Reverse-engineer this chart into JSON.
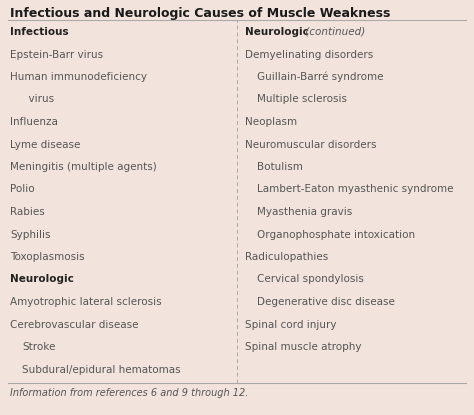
{
  "title": "Infectious and Neurologic Causes of Muscle Weakness",
  "bg_color": "#f2e4dc",
  "title_color": "#1a1a1a",
  "text_color": "#555555",
  "bold_color": "#222222",
  "footer": "Information from references 6 and 9 through 12.",
  "left_column": [
    {
      "text": "Infectious",
      "bold": true,
      "indent": false
    },
    {
      "text": "Epstein-Barr virus",
      "bold": false,
      "indent": false
    },
    {
      "text": "Human immunodeficiency",
      "bold": false,
      "indent": false
    },
    {
      "text": "  virus",
      "bold": false,
      "indent": true
    },
    {
      "text": "Influenza",
      "bold": false,
      "indent": false
    },
    {
      "text": "Lyme disease",
      "bold": false,
      "indent": false
    },
    {
      "text": "Meningitis (multiple agents)",
      "bold": false,
      "indent": false
    },
    {
      "text": "Polio",
      "bold": false,
      "indent": false
    },
    {
      "text": "Rabies",
      "bold": false,
      "indent": false
    },
    {
      "text": "Syphilis",
      "bold": false,
      "indent": false
    },
    {
      "text": "Toxoplasmosis",
      "bold": false,
      "indent": false
    },
    {
      "text": "Neurologic",
      "bold": true,
      "indent": false
    },
    {
      "text": "Amyotrophic lateral sclerosis",
      "bold": false,
      "indent": false
    },
    {
      "text": "Cerebrovascular disease",
      "bold": false,
      "indent": false
    },
    {
      "text": "Stroke",
      "bold": false,
      "indent": true
    },
    {
      "text": "Subdural/epidural hematomas",
      "bold": false,
      "indent": true
    }
  ],
  "right_column": [
    {
      "text": "Neurologic",
      "bold": true,
      "indent": false,
      "italic_suffix": " (continued)"
    },
    {
      "text": "Demyelinating disorders",
      "bold": false,
      "indent": false
    },
    {
      "text": "Guillain-Barré syndrome",
      "bold": false,
      "indent": true
    },
    {
      "text": "Multiple sclerosis",
      "bold": false,
      "indent": true
    },
    {
      "text": "Neoplasm",
      "bold": false,
      "indent": false
    },
    {
      "text": "Neuromuscular disorders",
      "bold": false,
      "indent": false
    },
    {
      "text": "Botulism",
      "bold": false,
      "indent": true
    },
    {
      "text": "Lambert-Eaton myasthenic syndrome",
      "bold": false,
      "indent": true
    },
    {
      "text": "Myasthenia gravis",
      "bold": false,
      "indent": true
    },
    {
      "text": "Organophosphate intoxication",
      "bold": false,
      "indent": true
    },
    {
      "text": "Radiculopathies",
      "bold": false,
      "indent": false
    },
    {
      "text": "Cervical spondylosis",
      "bold": false,
      "indent": true
    },
    {
      "text": "Degenerative disc disease",
      "bold": false,
      "indent": true
    },
    {
      "text": "Spinal cord injury",
      "bold": false,
      "indent": false
    },
    {
      "text": "Spinal muscle atrophy",
      "bold": false,
      "indent": false
    }
  ],
  "title_fontsize": 9.0,
  "body_fontsize": 7.5,
  "footer_fontsize": 7.0,
  "line_color": "#aaaaaa",
  "divider_color": "#aaaaaa"
}
